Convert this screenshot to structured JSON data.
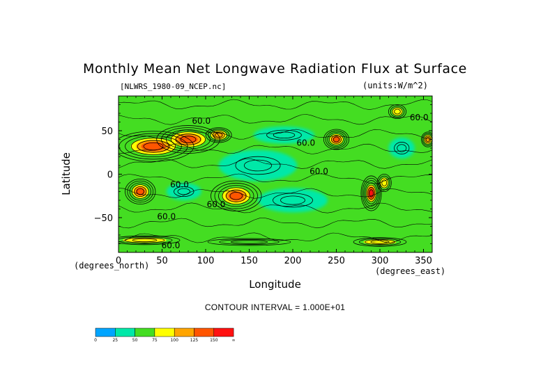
{
  "chart_data": {
    "type": "heatmap",
    "title": "Monthly Mean Net Longwave Radiation Flux at Surface",
    "file_label": "[NLWRS_1980-09_NCEP.nc]",
    "units_label": "(units:W/m^2)",
    "xlabel": "Longitude",
    "ylabel": "Latitude",
    "x_unit_label": "(degrees_east)",
    "y_unit_label": "(degrees_north)",
    "contour_interval_text": "CONTOUR INTERVAL = 1.000E+01",
    "xlim": [
      0,
      360
    ],
    "ylim": [
      -90,
      90
    ],
    "x_ticks": [
      "0",
      "50",
      "100",
      "150",
      "200",
      "250",
      "300",
      "350"
    ],
    "x_tick_values": [
      0,
      50,
      100,
      150,
      200,
      250,
      300,
      350
    ],
    "y_ticks": [
      "50",
      "0",
      "−50"
    ],
    "y_tick_values": [
      50,
      0,
      -50
    ],
    "contour_labels": [
      {
        "text": "60.0",
        "lon": 95,
        "lat": 58
      },
      {
        "text": "60.0",
        "lon": 215,
        "lat": 33
      },
      {
        "text": "60.0",
        "lon": 230,
        "lat": 0
      },
      {
        "text": "60.0",
        "lon": 70,
        "lat": -15
      },
      {
        "text": "60.0",
        "lon": 112,
        "lat": -38
      },
      {
        "text": "60.0",
        "lon": 55,
        "lat": -52
      },
      {
        "text": "60.0",
        "lon": 345,
        "lat": 62
      },
      {
        "text": "60.0",
        "lon": 60,
        "lat": -85
      }
    ],
    "colorbar": {
      "levels": [
        "0",
        "25",
        "50",
        "75",
        "100",
        "125",
        "150",
        "∞"
      ],
      "colors": [
        "#00a5ff",
        "#00e8a8",
        "#44dd22",
        "#ffff00",
        "#ffa500",
        "#ff5500",
        "#ff1111"
      ]
    },
    "regions": [
      {
        "name": "sahara-arabia",
        "lon": 40,
        "lat": 32,
        "rlon": 32,
        "rlat": 12,
        "level": 5
      },
      {
        "name": "tibet-central-asia",
        "lon": 80,
        "lat": 40,
        "rlon": 25,
        "rlat": 11,
        "level": 5
      },
      {
        "name": "east-asia",
        "lon": 115,
        "lat": 45,
        "rlon": 12,
        "rlat": 7,
        "level": 4
      },
      {
        "name": "southern-africa",
        "lon": 25,
        "lat": -20,
        "rlon": 12,
        "rlat": 10,
        "level": 5
      },
      {
        "name": "australia",
        "lon": 135,
        "lat": -25,
        "rlon": 20,
        "rlat": 12,
        "level": 5
      },
      {
        "name": "southwest-us",
        "lon": 250,
        "lat": 40,
        "rlon": 10,
        "rlat": 8,
        "level": 5
      },
      {
        "name": "andes",
        "lon": 290,
        "lat": -22,
        "rlon": 7,
        "rlat": 12,
        "level": 6
      },
      {
        "name": "brazil",
        "lon": 305,
        "lat": -10,
        "rlon": 8,
        "rlat": 10,
        "level": 3
      },
      {
        "name": "greenland",
        "lon": 320,
        "lat": 72,
        "rlon": 10,
        "rlat": 8,
        "level": 3
      },
      {
        "name": "iberia",
        "lon": 355,
        "lat": 40,
        "rlon": 6,
        "rlat": 7,
        "level": 4
      },
      {
        "name": "antarctica-west",
        "lon": 30,
        "lat": -76,
        "rlon": 40,
        "rlat": 5,
        "level": 3
      },
      {
        "name": "antarctica-east",
        "lon": 150,
        "lat": -78,
        "rlon": 60,
        "rlat": 5,
        "level": 2
      },
      {
        "name": "antarctica-pen",
        "lon": 300,
        "lat": -78,
        "rlon": 30,
        "rlat": 5,
        "level": 3
      },
      {
        "name": "pacific-cold-tongue",
        "lon": 160,
        "lat": 10,
        "rlon": 45,
        "rlat": 18,
        "level": 1
      },
      {
        "name": "north-pacific",
        "lon": 190,
        "lat": 45,
        "rlon": 35,
        "rlat": 10,
        "level": 1
      },
      {
        "name": "south-pacific",
        "lon": 200,
        "lat": -30,
        "rlon": 40,
        "rlat": 14,
        "level": 1
      },
      {
        "name": "indian-ocean",
        "lon": 75,
        "lat": -20,
        "rlon": 20,
        "rlat": 10,
        "level": 1
      },
      {
        "name": "north-atlantic",
        "lon": 325,
        "lat": 30,
        "rlon": 15,
        "rlat": 12,
        "level": 1
      }
    ]
  }
}
